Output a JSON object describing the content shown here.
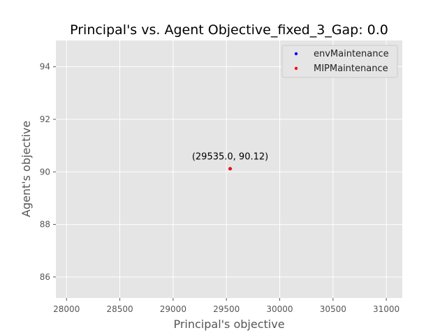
{
  "chart_data": {
    "type": "scatter",
    "title": "Principal's vs. Agent Objective_fixed_3_Gap: 0.0",
    "xlabel": "Principal's objective",
    "ylabel": "Agent's objective",
    "xlim": [
      27900,
      31150
    ],
    "ylim": [
      85.2,
      95.0
    ],
    "xticks": [
      28000,
      28500,
      29000,
      29500,
      30000,
      30500,
      31000
    ],
    "yticks": [
      86,
      88,
      90,
      92,
      94
    ],
    "grid": true,
    "legend_position": "upper right",
    "series": [
      {
        "name": "envMaintenance",
        "color": "#0000ff",
        "points": [
          {
            "x": 29535.0,
            "y": 90.12
          }
        ]
      },
      {
        "name": "MIPMaintenance",
        "color": "#ff0000",
        "points": [
          {
            "x": 29535.0,
            "y": 90.12
          }
        ]
      }
    ],
    "annotations": [
      {
        "text": "(29535.0, 90.12)",
        "x": 29535.0,
        "y": 90.12
      }
    ]
  },
  "colors": {
    "plot_background": "#e5e5e5",
    "grid": "#ffffff",
    "text": "#555555",
    "title": "#000000"
  }
}
